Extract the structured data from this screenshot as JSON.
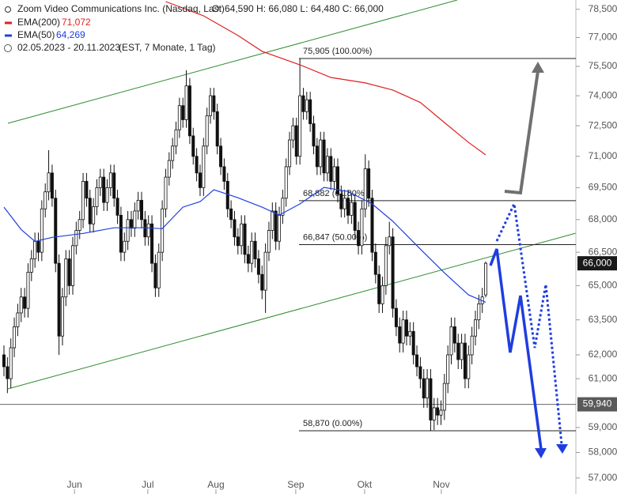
{
  "chart_data": {
    "type": "candlestick",
    "title": "Zoom Video Communications Inc. (Nasdaq, Last)",
    "quote": "O: 64,590  H: 66,080  L: 64,480  C: 66,000",
    "period": "02.05.2023 - 20.11.2023",
    "period_note": "(EST, 7 Monate, 1 Tag)",
    "log_scale": true,
    "ylim": [
      56900,
      79000
    ],
    "xlim": [
      -1.15,
      166.2
    ],
    "yticks": [
      {
        "value": 78500,
        "label": "78,500"
      },
      {
        "value": 77000,
        "label": "77,000"
      },
      {
        "value": 75500,
        "label": "75,500"
      },
      {
        "value": 74000,
        "label": "74,000"
      },
      {
        "value": 72500,
        "label": "72,500"
      },
      {
        "value": 71000,
        "label": "71,000"
      },
      {
        "value": 69500,
        "label": "69,500"
      },
      {
        "value": 68000,
        "label": "68,000"
      },
      {
        "value": 66500,
        "label": "66,500"
      },
      {
        "value": 65000,
        "label": "65,000"
      },
      {
        "value": 63500,
        "label": "63,500"
      },
      {
        "value": 62000,
        "label": "62,000"
      },
      {
        "value": 61000,
        "label": "61,000"
      },
      {
        "value": 59000,
        "label": "59,000"
      },
      {
        "value": 58000,
        "label": "58,000"
      },
      {
        "value": 57000,
        "label": "57,000"
      }
    ],
    "xticks": [
      {
        "value": 20.5,
        "label": "Jun"
      },
      {
        "value": 41.8,
        "label": "Jul"
      },
      {
        "value": 61.6,
        "label": "Aug"
      },
      {
        "value": 84.8,
        "label": "Sep"
      },
      {
        "value": 104.8,
        "label": "Okt"
      },
      {
        "value": 127.1,
        "label": "Nov"
      }
    ],
    "up_color": "#ffffff",
    "down_color": "#111111",
    "ohlc": [
      [
        62000,
        62400,
        61100,
        61500
      ],
      [
        61500,
        61900,
        60400,
        61000
      ],
      [
        61000,
        62700,
        60600,
        62300
      ],
      [
        62300,
        63600,
        61900,
        63200
      ],
      [
        63200,
        64200,
        62800,
        63800
      ],
      [
        63800,
        64900,
        63400,
        64500
      ],
      [
        64500,
        64900,
        63600,
        64000
      ],
      [
        64000,
        66000,
        63600,
        65600
      ],
      [
        65600,
        66600,
        65200,
        66200
      ],
      [
        66200,
        67400,
        65800,
        67000
      ],
      [
        67000,
        67400,
        66100,
        66500
      ],
      [
        66500,
        68900,
        66100,
        68500
      ],
      [
        68500,
        69700,
        68100,
        69300
      ],
      [
        69300,
        71300,
        68900,
        70200
      ],
      [
        70200,
        70600,
        68600,
        69000
      ],
      [
        69000,
        69400,
        65600,
        66000
      ],
      [
        66000,
        66400,
        62000,
        62800
      ],
      [
        62800,
        64900,
        62400,
        64500
      ],
      [
        64500,
        66600,
        64100,
        66200
      ],
      [
        66200,
        66600,
        64600,
        65000
      ],
      [
        65000,
        67200,
        64600,
        66800
      ],
      [
        66800,
        67900,
        66400,
        67500
      ],
      [
        67500,
        68400,
        67100,
        68000
      ],
      [
        68000,
        70200,
        67600,
        69800
      ],
      [
        69800,
        70200,
        68600,
        69000
      ],
      [
        69000,
        69400,
        67400,
        67800
      ],
      [
        67800,
        69000,
        67400,
        68600
      ],
      [
        68600,
        69900,
        68200,
        69500
      ],
      [
        69500,
        70400,
        69100,
        70000
      ],
      [
        70000,
        70400,
        68400,
        68800
      ],
      [
        68800,
        69900,
        68400,
        69500
      ],
      [
        69500,
        70600,
        69100,
        70200
      ],
      [
        70200,
        70600,
        68600,
        69000
      ],
      [
        69000,
        69400,
        67800,
        68200
      ],
      [
        68200,
        68600,
        66100,
        66500
      ],
      [
        66500,
        67400,
        66100,
        67000
      ],
      [
        67000,
        68400,
        66600,
        68000
      ],
      [
        68000,
        68400,
        67200,
        67600
      ],
      [
        67600,
        68800,
        67200,
        68400
      ],
      [
        68400,
        69300,
        68000,
        68900
      ],
      [
        68900,
        69300,
        67600,
        68000
      ],
      [
        68000,
        68400,
        66800,
        67200
      ],
      [
        67200,
        68200,
        66800,
        67800
      ],
      [
        67800,
        68200,
        65600,
        66000
      ],
      [
        66000,
        66400,
        64500,
        64900
      ],
      [
        64900,
        66900,
        64500,
        66500
      ],
      [
        66500,
        68900,
        66100,
        68500
      ],
      [
        68500,
        70400,
        68100,
        70000
      ],
      [
        70000,
        71200,
        69600,
        70800
      ],
      [
        70800,
        71900,
        70400,
        71500
      ],
      [
        71500,
        72700,
        71100,
        72300
      ],
      [
        72300,
        73900,
        71900,
        73500
      ],
      [
        73500,
        73900,
        72400,
        72800
      ],
      [
        72800,
        75300,
        72400,
        74500
      ],
      [
        74500,
        74900,
        71600,
        72000
      ],
      [
        72000,
        72400,
        70600,
        71000
      ],
      [
        71000,
        71400,
        69800,
        70200
      ],
      [
        70200,
        70600,
        69100,
        69500
      ],
      [
        69500,
        71900,
        69100,
        71500
      ],
      [
        71500,
        73400,
        71100,
        73000
      ],
      [
        73000,
        74400,
        72600,
        74000
      ],
      [
        74000,
        74400,
        72800,
        73200
      ],
      [
        73200,
        73600,
        71100,
        71500
      ],
      [
        71500,
        71900,
        70100,
        70500
      ],
      [
        70500,
        70900,
        69400,
        69800
      ],
      [
        69800,
        70200,
        68100,
        68500
      ],
      [
        68500,
        68900,
        67600,
        68000
      ],
      [
        68000,
        68400,
        66800,
        67200
      ],
      [
        67200,
        67600,
        66400,
        66800
      ],
      [
        66800,
        68200,
        66400,
        67800
      ],
      [
        67800,
        68200,
        66000,
        66400
      ],
      [
        66400,
        66800,
        65600,
        66000
      ],
      [
        66000,
        67400,
        65600,
        67000
      ],
      [
        67000,
        67400,
        65800,
        66200
      ],
      [
        66200,
        66600,
        65100,
        65500
      ],
      [
        65500,
        65900,
        64400,
        64800
      ],
      [
        64800,
        66900,
        63800,
        66500
      ],
      [
        66500,
        67900,
        66100,
        67500
      ],
      [
        67500,
        68800,
        67100,
        68400
      ],
      [
        68400,
        68800,
        66600,
        67000
      ],
      [
        67000,
        68600,
        66600,
        68200
      ],
      [
        68200,
        69400,
        67800,
        69000
      ],
      [
        69000,
        70900,
        68600,
        70500
      ],
      [
        70500,
        72200,
        70100,
        71800
      ],
      [
        71800,
        72900,
        71400,
        72500
      ],
      [
        72500,
        72900,
        70600,
        71000
      ],
      [
        71000,
        75905,
        70600,
        74000
      ],
      [
        74000,
        74400,
        72800,
        73200
      ],
      [
        73200,
        74200,
        72800,
        73800
      ],
      [
        73800,
        74200,
        72200,
        72600
      ],
      [
        72600,
        73000,
        71100,
        71500
      ],
      [
        71500,
        71900,
        70100,
        70500
      ],
      [
        70500,
        72200,
        70100,
        71800
      ],
      [
        71800,
        72200,
        69800,
        70200
      ],
      [
        70200,
        71400,
        69800,
        71000
      ],
      [
        71000,
        71400,
        69400,
        69800
      ],
      [
        69800,
        70900,
        69400,
        70500
      ],
      [
        70500,
        70900,
        68800,
        69200
      ],
      [
        69200,
        69600,
        68100,
        68500
      ],
      [
        68500,
        69400,
        68100,
        69000
      ],
      [
        69000,
        69400,
        67800,
        68200
      ],
      [
        68200,
        69200,
        67800,
        68800
      ],
      [
        68800,
        69200,
        67100,
        67500
      ],
      [
        67500,
        67900,
        66400,
        66800
      ],
      [
        66800,
        68900,
        66400,
        68500
      ],
      [
        68500,
        71100,
        68100,
        70400
      ],
      [
        70400,
        70800,
        68600,
        69000
      ],
      [
        69000,
        69400,
        66100,
        66500
      ],
      [
        66500,
        66900,
        65100,
        65500
      ],
      [
        65500,
        65900,
        63800,
        64200
      ],
      [
        64200,
        65400,
        63800,
        65000
      ],
      [
        65000,
        67200,
        64600,
        66800
      ],
      [
        66800,
        67900,
        66400,
        67200
      ],
      [
        67200,
        67600,
        63600,
        64000
      ],
      [
        64000,
        64400,
        62800,
        63200
      ],
      [
        63200,
        63600,
        62100,
        62500
      ],
      [
        62500,
        63900,
        62100,
        63500
      ],
      [
        63500,
        63900,
        62400,
        62800
      ],
      [
        62800,
        63400,
        62400,
        63000
      ],
      [
        63000,
        63400,
        61600,
        62000
      ],
      [
        62000,
        62400,
        61100,
        61500
      ],
      [
        61500,
        61900,
        60600,
        61000
      ],
      [
        61000,
        61400,
        59800,
        60200
      ],
      [
        60200,
        61400,
        59800,
        61000
      ],
      [
        61000,
        61400,
        58870,
        59300
      ],
      [
        59300,
        60200,
        58900,
        59800
      ],
      [
        59800,
        60200,
        59100,
        59500
      ],
      [
        59500,
        60100,
        59100,
        59700
      ],
      [
        59700,
        61200,
        59300,
        60800
      ],
      [
        60800,
        62400,
        60400,
        62000
      ],
      [
        62000,
        63600,
        61600,
        63200
      ],
      [
        63200,
        63600,
        62100,
        62500
      ],
      [
        62500,
        62900,
        61400,
        61800
      ],
      [
        61800,
        62900,
        61400,
        62500
      ],
      [
        62500,
        62900,
        60600,
        61000
      ],
      [
        61000,
        62400,
        60600,
        62000
      ],
      [
        62000,
        63200,
        61600,
        62800
      ],
      [
        62800,
        63900,
        62400,
        63500
      ],
      [
        63500,
        64600,
        63100,
        64200
      ],
      [
        64200,
        64900,
        63800,
        64500
      ],
      [
        64590,
        66080,
        64480,
        66000
      ]
    ],
    "series": [
      {
        "name": "EMA(200)",
        "color": "#e02020",
        "last_label": "71,072",
        "x": [
          47,
          58,
          68,
          75,
          86,
          95,
          105,
          113,
          121,
          128,
          135,
          140
        ],
        "values": [
          78915,
          78150,
          77110,
          76280,
          75580,
          74930,
          74650,
          74290,
          73660,
          72660,
          71680,
          71072
        ]
      },
      {
        "name": "EMA(50)",
        "color": "#2040e0",
        "last_label": "64,269",
        "x": [
          0,
          5,
          9,
          14,
          23,
          32,
          41,
          46,
          52,
          57,
          61,
          68,
          75,
          80,
          86,
          93,
          100,
          107,
          113,
          121,
          128,
          135,
          140
        ],
        "values": [
          68580,
          67540,
          66990,
          67180,
          67360,
          67620,
          67620,
          67580,
          68580,
          68840,
          69400,
          69020,
          68580,
          68210,
          68730,
          69510,
          69320,
          68730,
          67920,
          66640,
          65570,
          64590,
          64269
        ]
      }
    ],
    "fib_levels": [
      {
        "value": 75905,
        "label": "75,905 (100.00%)"
      },
      {
        "value": 68882,
        "label": "68,882 (61.80%)"
      },
      {
        "value": 66847,
        "label": "66,847 (50.00%)"
      },
      {
        "value": 58870,
        "label": "58,870 (0.00%)"
      }
    ],
    "price_marks": [
      {
        "value": 66000,
        "label": "66,000",
        "color": "#1a1a1a",
        "full_line": false
      },
      {
        "value": 59940,
        "label": "59,940",
        "color": "#5a5a5a",
        "full_line": true
      }
    ]
  }
}
